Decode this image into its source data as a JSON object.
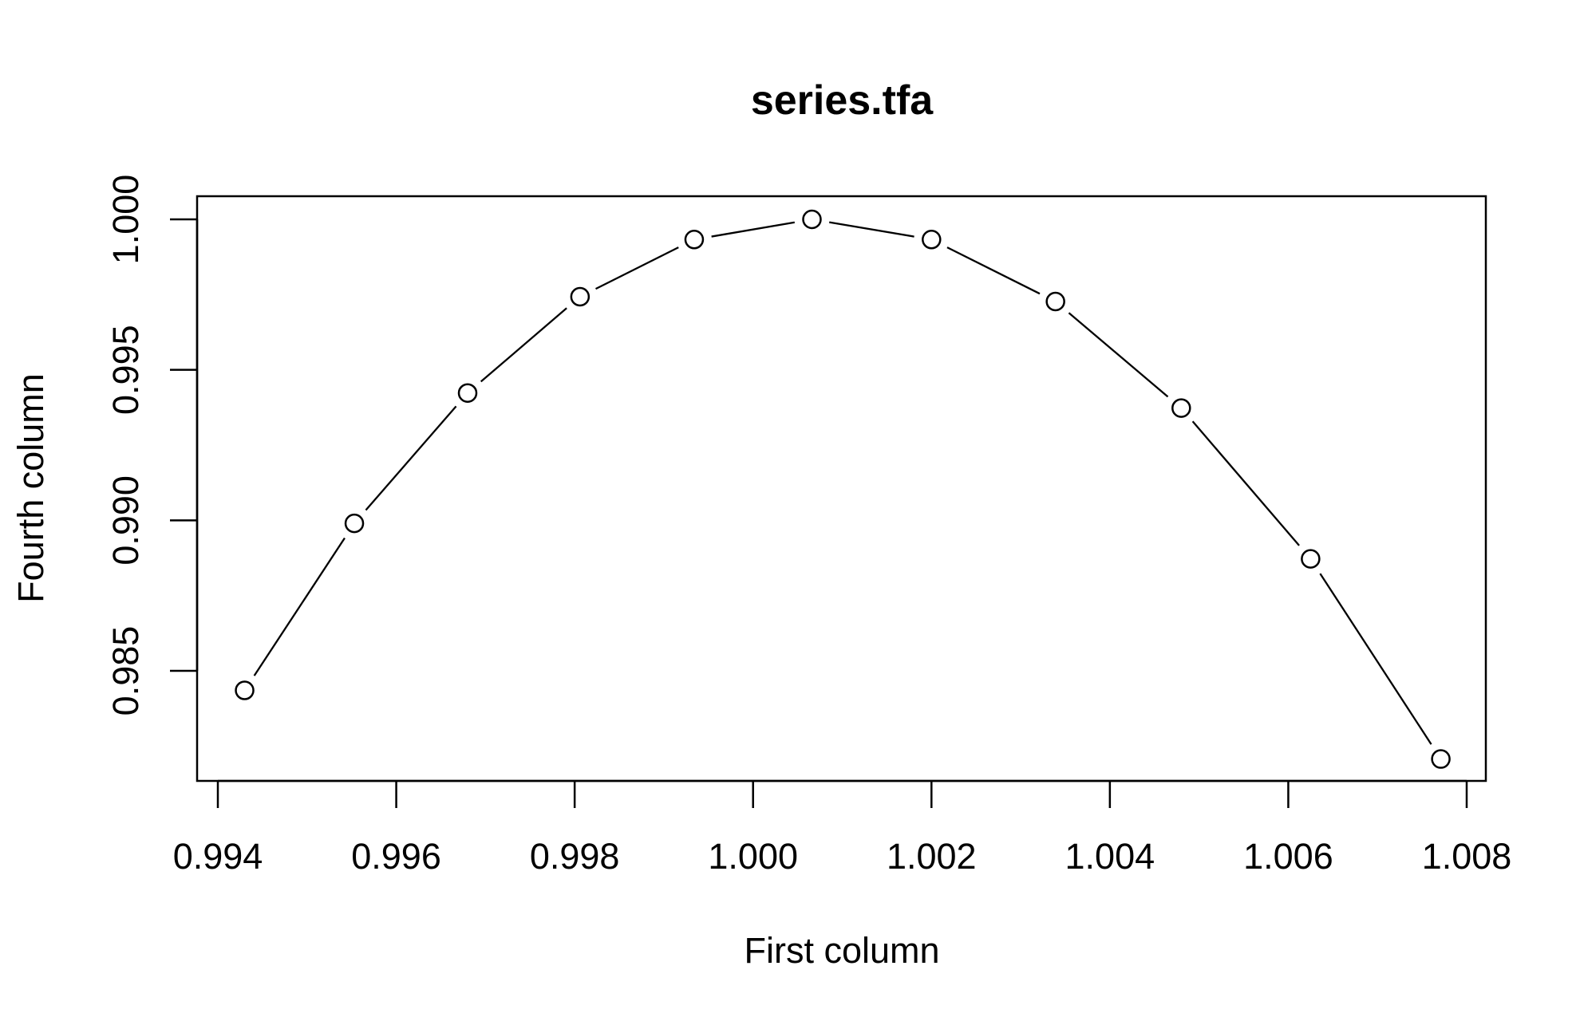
{
  "chart_data": {
    "type": "line",
    "title": "series.tfa",
    "xlabel": "First column",
    "ylabel": "Fourth column",
    "xlim": [
      0.994,
      1.0077
    ],
    "ylim": [
      0.982,
      1.0007
    ],
    "x_ticks": [
      0.994,
      0.996,
      0.998,
      1.0,
      1.002,
      1.004,
      1.006,
      1.008
    ],
    "x_tick_labels": [
      "0.994",
      "0.996",
      "0.998",
      "1.000",
      "1.002",
      "1.004",
      "1.006",
      "1.008"
    ],
    "y_ticks": [
      0.985,
      0.99,
      0.995,
      1.0
    ],
    "y_tick_labels": [
      "0.985",
      "0.990",
      "0.995",
      "1.000"
    ],
    "grid": false,
    "line_style": "points connected by line segments",
    "marker": "open-circle",
    "color": "#000000",
    "series": [
      {
        "x": [
          0.9943,
          0.99553,
          0.9968,
          0.99806,
          0.99934,
          1.00066,
          1.002,
          1.00339,
          1.0048,
          1.00625,
          1.00771
        ],
        "y": [
          0.98435,
          0.9899,
          0.99423,
          0.99743,
          0.99933,
          1.0,
          0.99933,
          0.99727,
          0.99373,
          0.98872,
          0.98207
        ]
      }
    ]
  }
}
